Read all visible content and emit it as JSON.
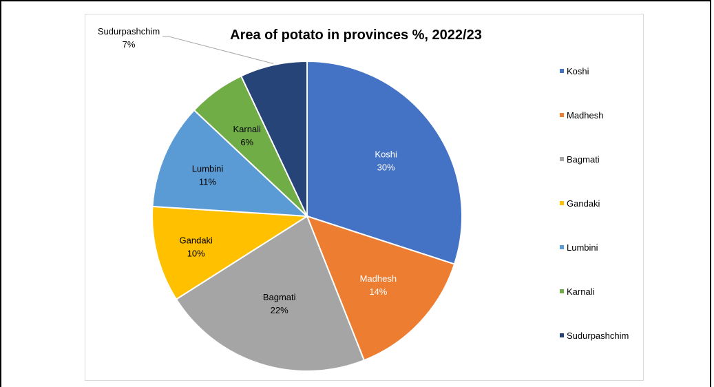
{
  "chart_data": {
    "type": "pie",
    "title": "Area of potato in provinces %, 2022/23",
    "categories": [
      "Koshi",
      "Madhesh",
      "Bagmati",
      "Gandaki",
      "Lumbini",
      "Karnali",
      "Sudurpashchim"
    ],
    "values": [
      30,
      14,
      22,
      10,
      11,
      6,
      7
    ],
    "data_labels": [
      "30%",
      "14%",
      "22%",
      "10%",
      "11%",
      "6%",
      "7%"
    ],
    "colors": [
      "#4472C4",
      "#ED7D31",
      "#A5A5A5",
      "#FFC000",
      "#5B9BD5",
      "#70AD47",
      "#264478"
    ],
    "label_colors": [
      "#ffffff",
      "#ffffff",
      "#000000",
      "#000000",
      "#000000",
      "#000000",
      "#000000"
    ],
    "legend_position": "right",
    "start_angle": "12 o'clock",
    "direction": "clockwise"
  }
}
